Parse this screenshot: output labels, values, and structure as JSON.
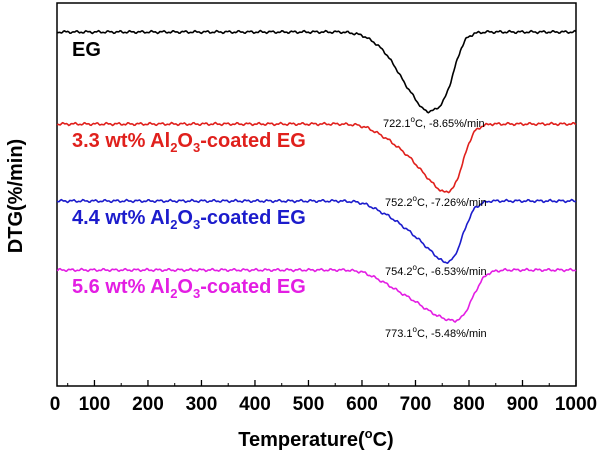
{
  "chart_data": {
    "type": "line",
    "title": "",
    "xlabel": "Temperature",
    "xlabel_unit": "(°C)",
    "ylabel": "DTG(%/min)",
    "xlim": [
      30,
      1000
    ],
    "xticks": [
      0,
      100,
      200,
      300,
      400,
      500,
      600,
      700,
      800,
      900,
      1000
    ],
    "y_ticks_shown": false,
    "grid": false,
    "legend": "inline labels left of each curve",
    "series": [
      {
        "name": "EG",
        "label_parts": [
          "EG"
        ],
        "color": "#000000",
        "baseline": 0,
        "peak_temperature": 722.1,
        "peak_rate": -8.65,
        "annotation": "722.1°C, -8.65%/min",
        "points": [
          [
            30,
            0
          ],
          [
            100,
            0
          ],
          [
            200,
            0
          ],
          [
            300,
            0
          ],
          [
            400,
            0
          ],
          [
            500,
            0
          ],
          [
            560,
            0
          ],
          [
            580,
            -0.1
          ],
          [
            600,
            -0.35
          ],
          [
            620,
            -1.0
          ],
          [
            640,
            -2.0
          ],
          [
            660,
            -3.6
          ],
          [
            680,
            -5.6
          ],
          [
            700,
            -7.3
          ],
          [
            712,
            -8.3
          ],
          [
            722.1,
            -8.65
          ],
          [
            735,
            -8.5
          ],
          [
            745,
            -8.1
          ],
          [
            755,
            -7.2
          ],
          [
            765,
            -5.6
          ],
          [
            775,
            -3.6
          ],
          [
            785,
            -1.8
          ],
          [
            795,
            -0.7
          ],
          [
            810,
            -0.15
          ],
          [
            830,
            0
          ],
          [
            900,
            0
          ],
          [
            1000,
            0
          ]
        ]
      },
      {
        "name": "3.3 wt% Al2O3-coated EG",
        "label_parts": [
          "3.3 wt% Al",
          "2",
          "O",
          "3",
          "-coated EG"
        ],
        "color": "#e0201c",
        "baseline": 0,
        "peak_temperature": 752.2,
        "peak_rate": -7.26,
        "annotation": "752.2°C, -7.26%/min",
        "points": [
          [
            30,
            0
          ],
          [
            100,
            0
          ],
          [
            200,
            0
          ],
          [
            300,
            0
          ],
          [
            400,
            0
          ],
          [
            500,
            0
          ],
          [
            560,
            0
          ],
          [
            590,
            -0.1
          ],
          [
            610,
            -0.4
          ],
          [
            630,
            -1.0
          ],
          [
            650,
            -1.7
          ],
          [
            670,
            -2.6
          ],
          [
            690,
            -3.6
          ],
          [
            710,
            -4.9
          ],
          [
            730,
            -6.2
          ],
          [
            745,
            -7.0
          ],
          [
            752.2,
            -7.26
          ],
          [
            765,
            -7.1
          ],
          [
            772,
            -6.7
          ],
          [
            780,
            -5.6
          ],
          [
            790,
            -3.8
          ],
          [
            800,
            -2.0
          ],
          [
            810,
            -0.8
          ],
          [
            825,
            -0.2
          ],
          [
            840,
            0
          ],
          [
            900,
            0
          ],
          [
            1000,
            0
          ]
        ]
      },
      {
        "name": "4.4 wt% Al2O3-coated EG",
        "label_parts": [
          "4.4 wt% Al",
          "2",
          "O",
          "3",
          "-coated EG"
        ],
        "color": "#1c1ccc",
        "baseline": 0,
        "peak_temperature": 754.2,
        "peak_rate": -6.53,
        "annotation": "754.2°C, -6.53%/min",
        "points": [
          [
            30,
            0
          ],
          [
            100,
            0
          ],
          [
            200,
            0
          ],
          [
            300,
            0
          ],
          [
            400,
            0
          ],
          [
            500,
            0
          ],
          [
            560,
            0
          ],
          [
            590,
            -0.1
          ],
          [
            610,
            -0.4
          ],
          [
            630,
            -1.0
          ],
          [
            650,
            -1.6
          ],
          [
            670,
            -2.4
          ],
          [
            690,
            -3.3
          ],
          [
            710,
            -4.3
          ],
          [
            730,
            -5.4
          ],
          [
            745,
            -6.2
          ],
          [
            754.2,
            -6.53
          ],
          [
            765,
            -6.4
          ],
          [
            772,
            -6.0
          ],
          [
            780,
            -5.0
          ],
          [
            790,
            -3.4
          ],
          [
            800,
            -1.9
          ],
          [
            810,
            -0.8
          ],
          [
            825,
            -0.2
          ],
          [
            840,
            0
          ],
          [
            900,
            0
          ],
          [
            1000,
            0
          ]
        ]
      },
      {
        "name": "5.6 wt% Al2O3-coated EG",
        "label_parts": [
          "5.6 wt% Al",
          "2",
          "O",
          "3",
          "-coated EG"
        ],
        "color": "#e31ee3",
        "baseline": 0,
        "peak_temperature": 773.1,
        "peak_rate": -5.48,
        "annotation": "773.1°C, -5.48%/min",
        "points": [
          [
            30,
            0
          ],
          [
            100,
            0
          ],
          [
            200,
            0
          ],
          [
            300,
            0
          ],
          [
            400,
            0
          ],
          [
            500,
            0
          ],
          [
            570,
            0
          ],
          [
            600,
            -0.2
          ],
          [
            620,
            -0.7
          ],
          [
            640,
            -1.3
          ],
          [
            660,
            -2.0
          ],
          [
            680,
            -2.7
          ],
          [
            700,
            -3.4
          ],
          [
            720,
            -4.2
          ],
          [
            740,
            -4.9
          ],
          [
            760,
            -5.35
          ],
          [
            773.1,
            -5.48
          ],
          [
            785,
            -5.2
          ],
          [
            795,
            -4.4
          ],
          [
            805,
            -3.2
          ],
          [
            815,
            -2.0
          ],
          [
            825,
            -1.0
          ],
          [
            835,
            -0.4
          ],
          [
            850,
            -0.1
          ],
          [
            870,
            0
          ],
          [
            900,
            0
          ],
          [
            1000,
            0
          ]
        ]
      }
    ]
  }
}
